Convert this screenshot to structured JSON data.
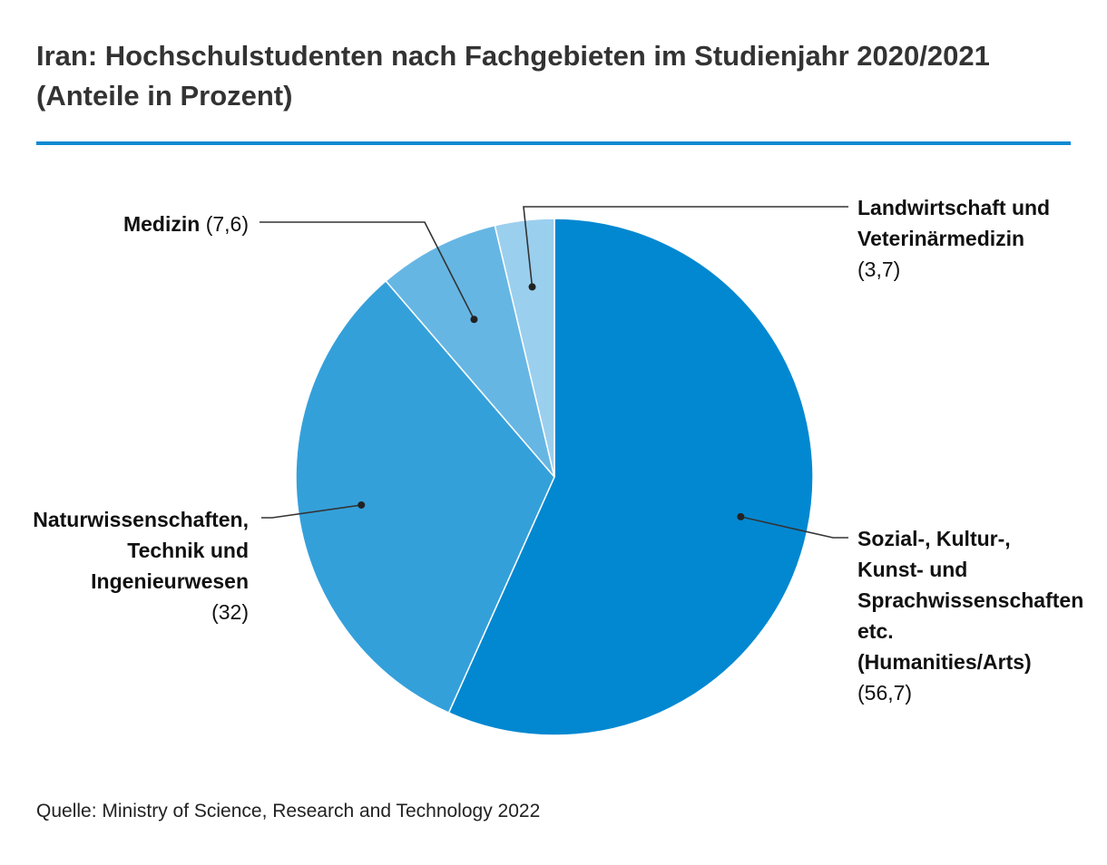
{
  "header": {
    "title": "Iran: Hochschulstudenten nach Fachgebieten im Studienjahr 2020/2021 (Anteile in Prozent)"
  },
  "colors": {
    "rule": "#0e8ad3",
    "slice_sozial": "#0288d1",
    "slice_natur": "#34a0da",
    "slice_medizin": "#66b6e4",
    "slice_land": "#9bcfee",
    "leader": "#333333"
  },
  "chart_data": {
    "type": "pie",
    "slices": [
      {
        "label": "Sozial-, Kultur-, Kunst- und Sprachwissenschaften etc. (Humanities/Arts)",
        "value": 56.7,
        "value_text": "(56,7)",
        "color": "#0288d1"
      },
      {
        "label": "Naturwissenschaften, Technik und Ingenieurwesen",
        "value": 32,
        "value_text": "(32)",
        "color": "#34a0da"
      },
      {
        "label": "Medizin",
        "value": 7.6,
        "value_text": "(7,6)",
        "color": "#66b6e4"
      },
      {
        "label": "Landwirtschaft und Veterinärmedizin",
        "value": 3.7,
        "value_text": "(3,7)",
        "color": "#9bcfee"
      }
    ],
    "start": "12 o'clock",
    "direction": "clockwise"
  },
  "labels": {
    "medizin": {
      "name": "Medizin",
      "value": "(7,6)"
    },
    "land": {
      "name": "Landwirtschaft und Veterinärmedizin",
      "value": "(3,7)"
    },
    "natur": {
      "name": "Naturwissenschaften, Technik und Ingenieurwesen",
      "value": "(32)"
    },
    "sozial": {
      "name": "Sozial-, Kultur-, Kunst- und Sprachwissenschaften etc. (Humanities/Arts)",
      "value": "(56,7)"
    }
  },
  "footer": {
    "source": "Quelle: Ministry of Science, Research and Technology 2022"
  }
}
